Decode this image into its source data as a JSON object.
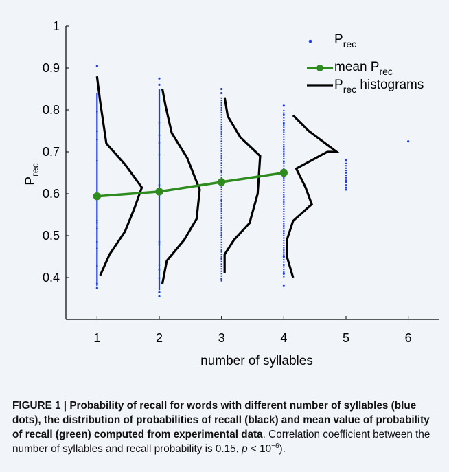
{
  "chart_data": {
    "type": "scatter",
    "xlabel": "number of syllables",
    "ylabel_main": "P",
    "ylabel_sub": "rec",
    "xlim": [
      0.5,
      6.5
    ],
    "ylim": [
      0.3,
      1.0
    ],
    "xticks": [
      1,
      2,
      3,
      4,
      5,
      6
    ],
    "yticks": [
      0.4,
      0.5,
      0.6,
      0.7,
      0.8,
      0.9,
      1.0
    ],
    "ytick_labels": [
      "0.4",
      "0.5",
      "0.6",
      "0.7",
      "0.8",
      "0.9",
      "1"
    ],
    "grid": false,
    "legend_position": "top-right",
    "legend": [
      {
        "main": "P",
        "sub": "rec",
        "suffix": "",
        "marker": "dot",
        "color": "#1f3de0"
      },
      {
        "main": "mean P",
        "sub": "rec",
        "suffix": "",
        "marker": "line-circle",
        "color": "#2e8b1e"
      },
      {
        "main": "P",
        "sub": "rec",
        "suffix": " histograms",
        "marker": "line",
        "color": "#000000"
      }
    ],
    "series": [
      {
        "name": "P_rec",
        "kind": "dots",
        "color": "#1f3de0",
        "groups": [
          {
            "x": 1,
            "y_min": 0.38,
            "y_max": 0.84,
            "outliers": [
              0.905,
              0.375,
              0.385
            ]
          },
          {
            "x": 2,
            "y_min": 0.37,
            "y_max": 0.85,
            "outliers": [
              0.875,
              0.86,
              0.355,
              0.365
            ]
          },
          {
            "x": 3,
            "y_min": 0.39,
            "y_max": 0.83,
            "outliers": [
              0.85,
              0.84
            ]
          },
          {
            "x": 4,
            "y_min": 0.4,
            "y_max": 0.8,
            "outliers": [
              0.81,
              0.45,
              0.41,
              0.38
            ]
          },
          {
            "x": 5,
            "y_min": 0.61,
            "y_max": 0.68,
            "outliers": [
              0.68,
              0.63,
              0.61
            ]
          },
          {
            "x": 6,
            "y_min": 0.725,
            "y_max": 0.725,
            "outliers": [
              0.725
            ]
          }
        ]
      },
      {
        "name": "mean P_rec",
        "kind": "line",
        "color": "#2e8b1e",
        "x": [
          1,
          2,
          3,
          4
        ],
        "y": [
          0.594,
          0.605,
          0.628,
          0.65
        ]
      },
      {
        "name": "P_rec histograms",
        "kind": "histograms",
        "color": "#000000",
        "curves": [
          {
            "base_x": 1,
            "points": [
              [
                1.0,
                0.88
              ],
              [
                1.05,
                0.82
              ],
              [
                1.15,
                0.72
              ],
              [
                1.45,
                0.67
              ],
              [
                1.72,
                0.615
              ],
              [
                1.6,
                0.565
              ],
              [
                1.45,
                0.51
              ],
              [
                1.2,
                0.455
              ],
              [
                1.05,
                0.405
              ]
            ]
          },
          {
            "base_x": 2,
            "points": [
              [
                2.05,
                0.85
              ],
              [
                2.1,
                0.81
              ],
              [
                2.2,
                0.745
              ],
              [
                2.45,
                0.685
              ],
              [
                2.65,
                0.61
              ],
              [
                2.6,
                0.54
              ],
              [
                2.4,
                0.49
              ],
              [
                2.12,
                0.44
              ],
              [
                2.05,
                0.385
              ]
            ]
          },
          {
            "base_x": 3,
            "points": [
              [
                3.05,
                0.83
              ],
              [
                3.1,
                0.785
              ],
              [
                3.3,
                0.735
              ],
              [
                3.62,
                0.69
              ],
              [
                3.58,
                0.6
              ],
              [
                3.45,
                0.53
              ],
              [
                3.2,
                0.49
              ],
              [
                3.05,
                0.455
              ],
              [
                3.05,
                0.41
              ]
            ]
          },
          {
            "base_x": 4,
            "points": [
              [
                4.15,
                0.787
              ],
              [
                4.4,
                0.75
              ],
              [
                4.85,
                0.7
              ],
              [
                4.7,
                0.7
              ],
              [
                4.2,
                0.66
              ],
              [
                4.35,
                0.615
              ],
              [
                4.45,
                0.575
              ],
              [
                4.15,
                0.535
              ],
              [
                4.05,
                0.49
              ],
              [
                4.05,
                0.45
              ],
              [
                4.15,
                0.4
              ]
            ]
          }
        ]
      }
    ]
  },
  "caption": {
    "label": "FIGURE 1 | Probability of recall for words with different number of syllables (blue dots), the distribution of probabilities of recall (black) and mean value of probability of recall (green) computed from experimental data",
    "text_a": ". Correlation coefficient between the number of syllables and recall probability is 0.15, ",
    "p_symbol": "p",
    "text_b": " < 10",
    "exponent": "−6",
    "text_c": ")."
  }
}
